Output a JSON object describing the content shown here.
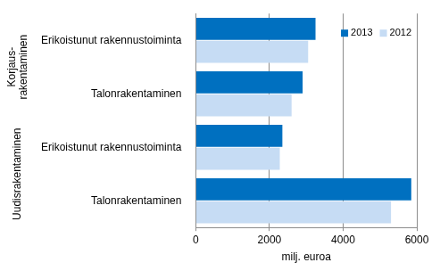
{
  "chart_data": {
    "type": "bar",
    "orientation": "horizontal",
    "categories": [
      "Erikoistunut rakennustoiminta",
      "Talonrakentaminen",
      "Erikoistunut rakennustoiminta",
      "Talonrakentaminen"
    ],
    "category_groups": [
      "Korjaus-rakentaminen",
      "Korjaus-rakentaminen",
      "Uudisrakentaminen",
      "Uudisrakentaminen"
    ],
    "series": [
      {
        "name": "2013",
        "color": "#0070c0",
        "values": [
          3250,
          2900,
          2350,
          5850
        ]
      },
      {
        "name": "2012",
        "color": "#c6dcf4",
        "values": [
          3050,
          2600,
          2280,
          5300
        ]
      }
    ],
    "xlabel": "milj. euroa",
    "xlim": [
      0,
      6000
    ],
    "xticks": [
      0,
      2000,
      4000,
      6000
    ],
    "grid": true,
    "legend": "upper right"
  }
}
